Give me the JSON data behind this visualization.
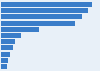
{
  "values": [
    1350,
    1280,
    1200,
    1100,
    560,
    300,
    210,
    175,
    140,
    110,
    85
  ],
  "bar_color": "#3a7dc9",
  "background_color": "#e8f0f8",
  "xlim": [
    0,
    1450
  ],
  "grid_color": "#c8d8e8",
  "bar_height": 0.82
}
